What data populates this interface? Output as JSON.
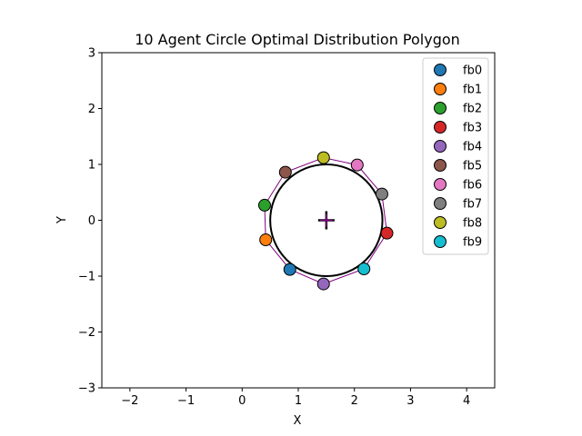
{
  "chart_data": {
    "type": "scatter",
    "title": "10 Agent Circle Optimal Distribution Polygon",
    "xlabel": "X",
    "ylabel": "Y",
    "xlim": [
      -2.5,
      4.5
    ],
    "ylim": [
      -3,
      3
    ],
    "x_ticks": [
      -2,
      -1,
      0,
      1,
      2,
      3,
      4
    ],
    "y_ticks": [
      -3,
      -2,
      -1,
      0,
      1,
      2,
      3
    ],
    "tick_labels_x": [
      "−2",
      "−1",
      "0",
      "1",
      "2",
      "3",
      "4"
    ],
    "tick_labels_y": [
      "−3",
      "−2",
      "−1",
      "0",
      "1",
      "2",
      "3"
    ],
    "grid": false,
    "legend_position": "top-right",
    "circle": {
      "center": [
        1.5,
        0.0
      ],
      "radius": 1.0,
      "color": "#000000"
    },
    "center_marker": {
      "x": 1.5,
      "y": 0.0,
      "colors": [
        "#000000",
        "#800080"
      ]
    },
    "polygon_color": "#800080",
    "series": [
      {
        "name": "fb0",
        "x": 0.85,
        "y": -0.88,
        "color": "#1f77b4"
      },
      {
        "name": "fb1",
        "x": 0.42,
        "y": -0.35,
        "color": "#ff7f0e"
      },
      {
        "name": "fb2",
        "x": 0.4,
        "y": 0.27,
        "color": "#2ca02c"
      },
      {
        "name": "fb3",
        "x": 2.58,
        "y": -0.23,
        "color": "#d62728"
      },
      {
        "name": "fb4",
        "x": 1.45,
        "y": -1.14,
        "color": "#9467bd"
      },
      {
        "name": "fb5",
        "x": 0.77,
        "y": 0.86,
        "color": "#8c564b"
      },
      {
        "name": "fb6",
        "x": 2.05,
        "y": 0.99,
        "color": "#e377c2"
      },
      {
        "name": "fb7",
        "x": 2.49,
        "y": 0.47,
        "color": "#7f7f7f"
      },
      {
        "name": "fb8",
        "x": 1.45,
        "y": 1.12,
        "color": "#bcbd22"
      },
      {
        "name": "fb9",
        "x": 2.17,
        "y": -0.87,
        "color": "#17becf"
      }
    ]
  }
}
